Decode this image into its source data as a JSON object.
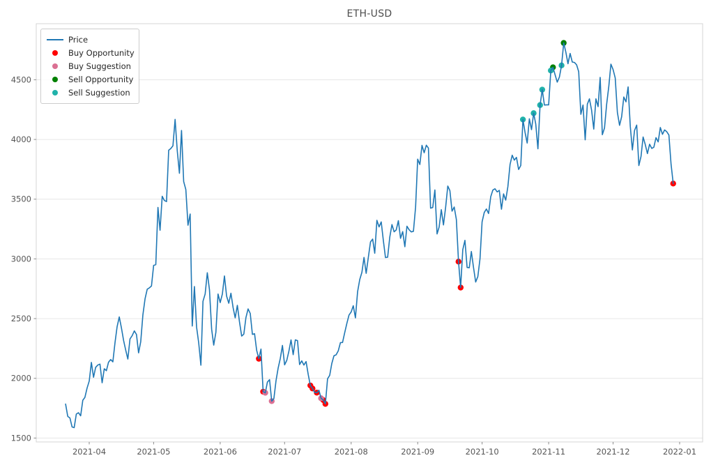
{
  "chart_data": {
    "type": "line",
    "title": "ETH-USD",
    "xlabel": "",
    "ylabel": "",
    "grid": "horizontal",
    "legend_position": "upper left",
    "line_color": "#1f77b4",
    "x_tick_labels": [
      "2021-04",
      "2021-05",
      "2021-06",
      "2021-07",
      "2021-08",
      "2021-09",
      "2021-10",
      "2021-11",
      "2021-12",
      "2022-01"
    ],
    "x_tick_days": [
      11,
      41,
      72,
      102,
      133,
      164,
      194,
      225,
      255,
      286
    ],
    "y_ticks": [
      1500,
      2000,
      2500,
      3000,
      3500,
      4000,
      4500
    ],
    "ylim": [
      1420,
      4975
    ],
    "start_date": "2021-03-21",
    "series": [
      {
        "name": "Price",
        "prices": [
          1784,
          1681,
          1668,
          1593,
          1587,
          1701,
          1712,
          1686,
          1817,
          1840,
          1918,
          1977,
          2133,
          2009,
          2091,
          2111,
          2119,
          1963,
          2080,
          2064,
          2135,
          2157,
          2138,
          2299,
          2432,
          2514,
          2422,
          2317,
          2235,
          2161,
          2330,
          2357,
          2397,
          2367,
          2213,
          2307,
          2532,
          2666,
          2746,
          2757,
          2773,
          2945,
          2952,
          3431,
          3240,
          3524,
          3489,
          3480,
          3910,
          3924,
          3947,
          4168,
          3905,
          3717,
          4075,
          3648,
          3581,
          3282,
          3376,
          2438,
          2768,
          2430,
          2295,
          2110,
          2645,
          2706,
          2884,
          2742,
          2412,
          2278,
          2385,
          2706,
          2634,
          2706,
          2857,
          2688,
          2629,
          2712,
          2592,
          2506,
          2611,
          2471,
          2354,
          2370,
          2508,
          2581,
          2543,
          2368,
          2373,
          2234,
          2164,
          2245,
          1888,
          1879,
          1968,
          1989,
          1809,
          1830,
          1981,
          2085,
          2166,
          2275,
          2113,
          2150,
          2226,
          2322,
          2198,
          2322,
          2316,
          2115,
          2146,
          2111,
          2140,
          2031,
          1940,
          1915,
          1882,
          1880,
          1900,
          1833,
          1818,
          1786,
          1996,
          2025,
          2124,
          2189,
          2197,
          2231,
          2299,
          2300,
          2382,
          2460,
          2530,
          2556,
          2608,
          2506,
          2725,
          2827,
          2888,
          3012,
          2879,
          3012,
          3142,
          3166,
          3047,
          3323,
          3268,
          3310,
          3151,
          3011,
          3014,
          3183,
          3287,
          3227,
          3242,
          3320,
          3172,
          3228,
          3102,
          3273,
          3244,
          3226,
          3231,
          3433,
          3835,
          3790,
          3950,
          3889,
          3952,
          3928,
          3425,
          3430,
          3577,
          3209,
          3267,
          3412,
          3284,
          3432,
          3610,
          3572,
          3400,
          3434,
          3330,
          2977,
          2760,
          3077,
          3155,
          2928,
          2926,
          3062,
          2928,
          2806,
          2852,
          3000,
          3310,
          3389,
          3418,
          3380,
          3520,
          3576,
          3587,
          3561,
          3574,
          3416,
          3544,
          3492,
          3605,
          3790,
          3868,
          3827,
          3850,
          3749,
          3782,
          4167,
          4060,
          3970,
          4173,
          4082,
          4220,
          4129,
          3922,
          4288,
          4417,
          4288,
          4290,
          4290,
          4577,
          4604,
          4540,
          4480,
          4522,
          4620,
          4808,
          4730,
          4634,
          4720,
          4648,
          4645,
          4625,
          4567,
          4211,
          4288,
          3997,
          4296,
          4340,
          4245,
          4087,
          4340,
          4275,
          4520,
          4040,
          4095,
          4295,
          4445,
          4630,
          4586,
          4515,
          4226,
          4118,
          4190,
          4355,
          4315,
          4440,
          4110,
          3912,
          4075,
          4120,
          3782,
          3858,
          4020,
          3957,
          3882,
          3960,
          3925,
          3935,
          4015,
          3980,
          4100,
          4043,
          4080,
          4065,
          4037,
          3793,
          3631
        ]
      }
    ],
    "markers": {
      "buy_opportunity": {
        "label": "Buy Opportunity",
        "color": "#ff0000",
        "points": [
          [
            90,
            2164
          ],
          [
            92,
            1888
          ],
          [
            114,
            1940
          ],
          [
            115,
            1915
          ],
          [
            117,
            1880
          ],
          [
            120,
            1818
          ],
          [
            121,
            1786
          ],
          [
            183,
            2977
          ],
          [
            184,
            2760
          ],
          [
            283,
            3631
          ]
        ]
      },
      "buy_suggestion": {
        "label": "Buy Suggestion",
        "color": "#db7093",
        "points": [
          [
            93,
            1879
          ],
          [
            96,
            1809
          ],
          [
            119,
            1833
          ]
        ]
      },
      "sell_opportunity": {
        "label": "Sell Opportunity",
        "color": "#008000",
        "points": [
          [
            227,
            4604
          ],
          [
            232,
            4808
          ]
        ]
      },
      "sell_suggestion": {
        "label": "Sell Suggestion",
        "color": "#20b2aa",
        "points": [
          [
            213,
            4167
          ],
          [
            218,
            4220
          ],
          [
            221,
            4288
          ],
          [
            222,
            4417
          ],
          [
            226,
            4577
          ],
          [
            231,
            4620
          ]
        ]
      }
    }
  },
  "legend": {
    "items": [
      {
        "key": "price",
        "label": "Price",
        "swatch": "line",
        "color": "#1f77b4"
      },
      {
        "key": "buy-opportunity",
        "label": "Buy Opportunity",
        "swatch": "dot",
        "color": "#ff0000"
      },
      {
        "key": "buy-suggestion",
        "label": "Buy Suggestion",
        "swatch": "dot",
        "color": "#db7093"
      },
      {
        "key": "sell-opportunity",
        "label": "Sell Opportunity",
        "swatch": "dot",
        "color": "#008000"
      },
      {
        "key": "sell-suggestion",
        "label": "Sell Suggestion",
        "swatch": "dot",
        "color": "#20b2aa"
      }
    ]
  },
  "axis_style": {
    "gridline_color": "#e6e6e6",
    "spine_color": "#d4d4d4",
    "tick_color": "#8a8a8a",
    "tick_label_color": "#555555",
    "title_color": "#4d4d4d"
  }
}
